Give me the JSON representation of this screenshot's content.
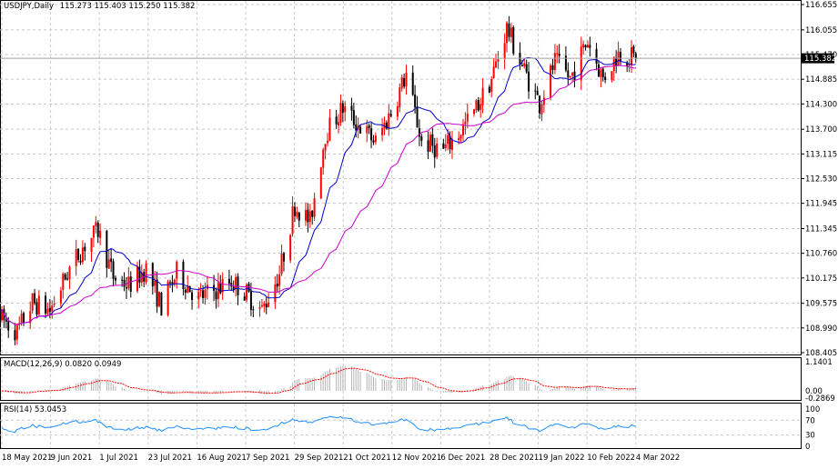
{
  "symbol_header": {
    "symbol": "USDJPY,Daily",
    "ohlc": "115.273 115.403 115.250 115.382"
  },
  "macd_header": "MACD(12,26,9) 0.0820 0.0949",
  "rsi_header": "RSI(14) 53.0453",
  "price_axis_labels": [
    "116.655",
    "116.055",
    "115.470",
    "114.885",
    "114.300",
    "113.700",
    "113.115",
    "112.530",
    "111.945",
    "111.345",
    "110.760",
    "110.175",
    "109.575",
    "108.990",
    "108.405"
  ],
  "current_price_label": "115.382",
  "macd_axis_labels": [
    "1.1401",
    "0.00",
    "-0.2869"
  ],
  "rsi_axis_labels": [
    "100",
    "70",
    "30",
    "0"
  ],
  "date_axis_labels": [
    "18 May 2021",
    "9 Jun 2021",
    "1 Jul 2021",
    "23 Jul 2021",
    "16 Aug 2021",
    "7 Sep 2021",
    "29 Sep 2021",
    "21 Oct 2021",
    "12 Nov 2021",
    "6 Dec 2021",
    "28 Dec 2021",
    "19 Jan 2022",
    "10 Feb 2022",
    "4 Mar 2022"
  ],
  "colors": {
    "up_candle": "#ff0000",
    "down_candle": "#000000",
    "fast_ma": "#0000cc",
    "slow_ma": "#cc00cc",
    "macd_hist": "#b4b4b4",
    "macd_signal": "#ff0000",
    "rsi_line": "#1e90ff",
    "grid": "#c8c8c8"
  },
  "chart_data": [
    {
      "type": "candlestick",
      "title": "USDJPY,Daily",
      "ylim": [
        108.405,
        116.655
      ],
      "current_price": 115.382,
      "moving_averages": [
        "blue",
        "magenta"
      ],
      "close_path": [
        {
          "date": "18 May 2021",
          "close": 109.2
        },
        {
          "date": "25 May 2021",
          "close": 108.9
        },
        {
          "date": "1 Jun 2021",
          "close": 109.6
        },
        {
          "date": "9 Jun 2021",
          "close": 109.4
        },
        {
          "date": "17 Jun 2021",
          "close": 110.3
        },
        {
          "date": "24 Jun 2021",
          "close": 110.9
        },
        {
          "date": "1 Jul 2021",
          "close": 111.3
        },
        {
          "date": "8 Jul 2021",
          "close": 110.2
        },
        {
          "date": "15 Jul 2021",
          "close": 110.0
        },
        {
          "date": "23 Jul 2021",
          "close": 110.4
        },
        {
          "date": "30 Jul 2021",
          "close": 109.5
        },
        {
          "date": "6 Aug 2021",
          "close": 110.3
        },
        {
          "date": "16 Aug 2021",
          "close": 109.7
        },
        {
          "date": "24 Aug 2021",
          "close": 109.9
        },
        {
          "date": "31 Aug 2021",
          "close": 110.1
        },
        {
          "date": "7 Sep 2021",
          "close": 109.8
        },
        {
          "date": "14 Sep 2021",
          "close": 109.4
        },
        {
          "date": "22 Sep 2021",
          "close": 110.3
        },
        {
          "date": "29 Sep 2021",
          "close": 111.9
        },
        {
          "date": "6 Oct 2021",
          "close": 111.5
        },
        {
          "date": "13 Oct 2021",
          "close": 113.6
        },
        {
          "date": "21 Oct 2021",
          "close": 114.2
        },
        {
          "date": "28 Oct 2021",
          "close": 113.8
        },
        {
          "date": "5 Nov 2021",
          "close": 113.4
        },
        {
          "date": "12 Nov 2021",
          "close": 114.1
        },
        {
          "date": "19 Nov 2021",
          "close": 115.0
        },
        {
          "date": "26 Nov 2021",
          "close": 113.4
        },
        {
          "date": "6 Dec 2021",
          "close": 113.2
        },
        {
          "date": "13 Dec 2021",
          "close": 113.6
        },
        {
          "date": "20 Dec 2021",
          "close": 114.1
        },
        {
          "date": "28 Dec 2021",
          "close": 114.9
        },
        {
          "date": "4 Jan 2022",
          "close": 116.1
        },
        {
          "date": "11 Jan 2022",
          "close": 115.2
        },
        {
          "date": "19 Jan 2022",
          "close": 114.3
        },
        {
          "date": "26 Jan 2022",
          "close": 115.3
        },
        {
          "date": "2 Feb 2022",
          "close": 114.9
        },
        {
          "date": "10 Feb 2022",
          "close": 115.8
        },
        {
          "date": "17 Feb 2022",
          "close": 114.9
        },
        {
          "date": "24 Feb 2022",
          "close": 115.5
        },
        {
          "date": "4 Mar 2022",
          "close": 115.382
        }
      ]
    },
    {
      "type": "histogram",
      "title": "MACD(12,26,9)",
      "main": 0.082,
      "signal": 0.0949,
      "ylim": [
        -0.2869,
        1.1401
      ]
    },
    {
      "type": "line",
      "title": "RSI(14)",
      "value": 53.0453,
      "ylim": [
        0,
        100
      ],
      "levels": [
        30,
        70
      ]
    }
  ]
}
